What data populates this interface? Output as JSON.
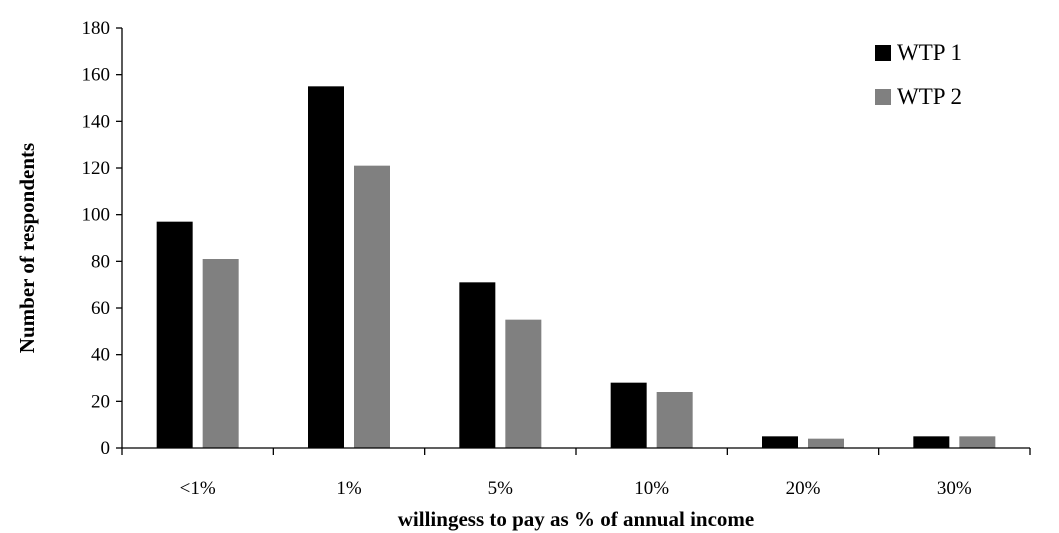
{
  "chart_data": {
    "type": "bar",
    "title": "",
    "xlabel": "willingess to pay as % of annual income",
    "ylabel": "Number of respondents",
    "categories": [
      "<1%",
      "1%",
      "5%",
      "10%",
      "20%",
      "30%"
    ],
    "series": [
      {
        "name": "WTP 1",
        "values": [
          97,
          155,
          71,
          28,
          5,
          5
        ],
        "color": "#000000"
      },
      {
        "name": "WTP 2",
        "values": [
          81,
          121,
          55,
          24,
          4,
          5
        ],
        "color": "#808080"
      }
    ],
    "ylim": [
      0,
      180
    ],
    "yticks": [
      0,
      20,
      40,
      60,
      80,
      100,
      120,
      140,
      160,
      180
    ],
    "grid": false,
    "legend_position": "top-right"
  }
}
